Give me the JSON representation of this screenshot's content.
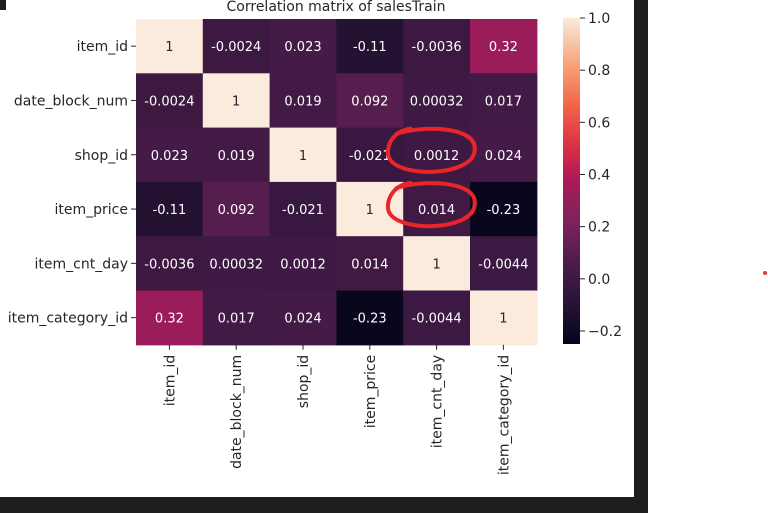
{
  "chart_data": {
    "type": "heatmap",
    "title": "Correlation matrix of salesTrain",
    "rows": [
      "item_id",
      "date_block_num",
      "shop_id",
      "item_price",
      "item_cnt_day",
      "item_category_id"
    ],
    "columns": [
      "item_id",
      "date_block_num",
      "shop_id",
      "item_price",
      "item_cnt_day",
      "item_category_id"
    ],
    "values": [
      [
        1,
        -0.0024,
        0.023,
        -0.11,
        -0.0036,
        0.32
      ],
      [
        -0.0024,
        1,
        0.019,
        0.092,
        0.00032,
        0.017
      ],
      [
        0.023,
        0.019,
        1,
        -0.021,
        0.0012,
        0.024
      ],
      [
        -0.11,
        0.092,
        -0.021,
        1,
        0.014,
        -0.23
      ],
      [
        -0.0036,
        0.00032,
        0.0012,
        0.014,
        1,
        -0.0044
      ],
      [
        0.32,
        0.017,
        0.024,
        -0.23,
        -0.0044,
        1
      ]
    ],
    "labels": [
      [
        "1",
        "-0.0024",
        "0.023",
        "-0.11",
        "-0.0036",
        "0.32"
      ],
      [
        "-0.0024",
        "1",
        "0.019",
        "0.092",
        "0.00032",
        "0.017"
      ],
      [
        "0.023",
        "0.019",
        "1",
        "-0.021",
        "0.0012",
        "0.024"
      ],
      [
        "-0.11",
        "0.092",
        "-0.021",
        "1",
        "0.014",
        "-0.23"
      ],
      [
        "-0.0036",
        "0.00032",
        "0.0012",
        "0.014",
        "1",
        "-0.0044"
      ],
      [
        "0.32",
        "0.017",
        "0.024",
        "-0.23",
        "-0.0044",
        "1"
      ]
    ],
    "colorbar": {
      "vmin": -0.25,
      "vmax": 1.0,
      "ticks": [
        1.0,
        0.8,
        0.6,
        0.4,
        0.2,
        0.0,
        -0.2
      ],
      "tick_labels": [
        "1.0",
        "0.8",
        "0.6",
        "0.4",
        "0.2",
        "0.0",
        "−0.2"
      ],
      "colormap": "rocket"
    },
    "annotations": [
      {
        "type": "hand-drawn-circle",
        "row": 2,
        "column": 4,
        "color": "#e8262a"
      },
      {
        "type": "hand-drawn-circle",
        "row": 3,
        "column": 4,
        "color": "#e8262a"
      }
    ]
  }
}
